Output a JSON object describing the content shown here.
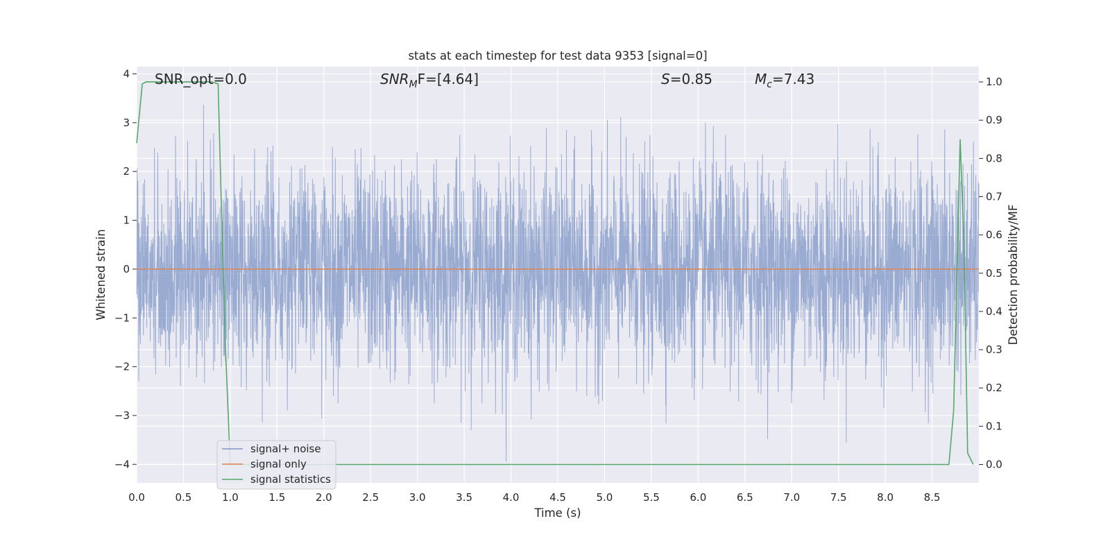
{
  "chart_data": {
    "type": "line",
    "title": "stats at each timestep for test data 9353 [signal=0]",
    "xlabel": "Time (s)",
    "ylabel": "Whitened strain",
    "y2label": "Detection probability/MF",
    "xlim": [
      0.0,
      9.0
    ],
    "ylim": [
      -4.38,
      4.15
    ],
    "y2lim": [
      -0.048,
      1.04
    ],
    "x_ticks": [
      "0.0",
      "0.5",
      "1.0",
      "1.5",
      "2.0",
      "2.5",
      "3.0",
      "3.5",
      "4.0",
      "4.5",
      "5.0",
      "5.5",
      "6.0",
      "6.5",
      "7.0",
      "7.5",
      "8.0",
      "8.5"
    ],
    "y_ticks": [
      "4",
      "3",
      "2",
      "1",
      "0",
      "−1",
      "−2",
      "−3",
      "−4"
    ],
    "y2_ticks": [
      "1.0",
      "0.9",
      "0.8",
      "0.7",
      "0.6",
      "0.5",
      "0.4",
      "0.3",
      "0.2",
      "0.1",
      "0.0"
    ],
    "grid": true,
    "legend_position": "lower-left",
    "annotations": {
      "snr_opt": "SNR_opt=0.0",
      "snr_mf_sym": "SNR",
      "snr_mf_sub": "M",
      "snr_mf_rest": "F=[4.64]",
      "s_sym": "S",
      "s_rest": "=0.85",
      "mc_sym": "M",
      "mc_sub": "c",
      "mc_rest": "=7.43"
    },
    "series": [
      {
        "name": "signal+ noise",
        "color": "#7f96c7",
        "axis": "left",
        "note_values": "dense noise, approx Gaussian, amplitude mostly within ±2.5, peaks near ±3.5",
        "envelope": {
          "typical": 1.5,
          "max": 3.5,
          "min": -4.0
        }
      },
      {
        "name": "signal only",
        "color": "#dd8452",
        "axis": "left",
        "x": [
          0.0,
          9.0
        ],
        "y": [
          0.0,
          0.0
        ]
      },
      {
        "name": "signal statistics",
        "color": "#55a868",
        "axis": "right",
        "x": [
          0.0,
          0.06,
          0.1,
          0.2,
          0.4,
          0.6,
          0.8,
          0.87,
          0.9,
          0.95,
          1.0,
          1.5,
          2.0,
          3.0,
          4.0,
          5.0,
          6.0,
          7.0,
          8.0,
          8.5,
          8.68,
          8.73,
          8.8,
          8.84,
          8.88,
          8.94
        ],
        "y": [
          0.84,
          0.995,
          1.0,
          1.0,
          1.0,
          1.0,
          1.0,
          0.995,
          0.72,
          0.3,
          0.0,
          0.0,
          0.0,
          0.0,
          0.0,
          0.0,
          0.0,
          0.0,
          0.0,
          0.0,
          0.0,
          0.14,
          0.85,
          0.58,
          0.03,
          0.0
        ]
      }
    ]
  }
}
